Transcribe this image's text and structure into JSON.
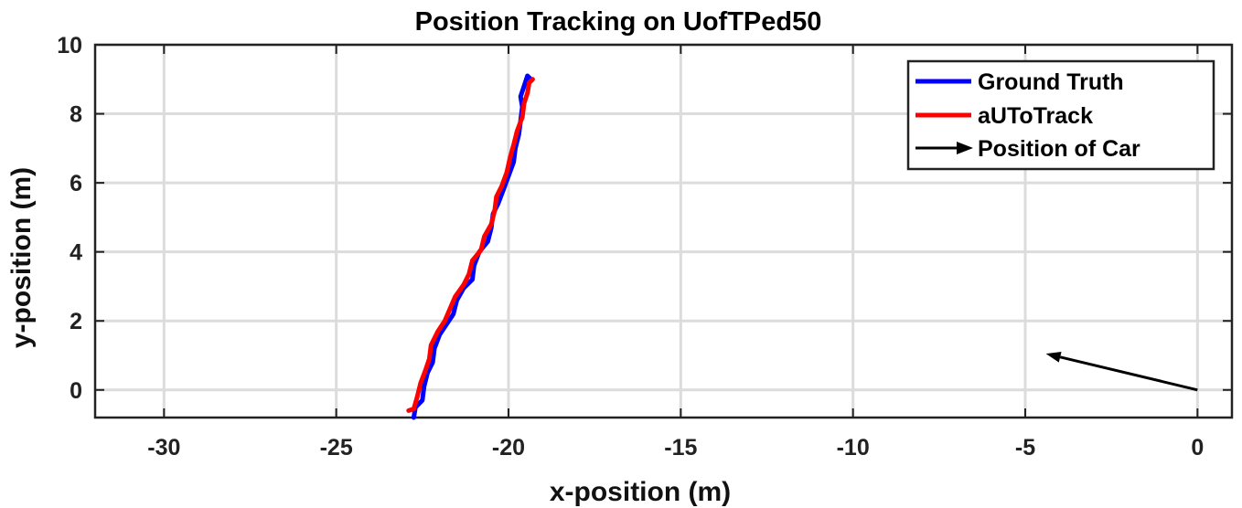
{
  "chart_data": {
    "type": "line",
    "title": "Position Tracking on UofTPed50",
    "xlabel": "x-position (m)",
    "ylabel": "y-position (m)",
    "xlim": [
      -32,
      1
    ],
    "ylim": [
      -0.8,
      10
    ],
    "xticks": [
      -30,
      -25,
      -20,
      -15,
      -10,
      -5,
      0
    ],
    "yticks": [
      0,
      2,
      4,
      6,
      8,
      10
    ],
    "xtick_labels": [
      "-30",
      "-25",
      "-20",
      "-15",
      "-10",
      "-5",
      "0"
    ],
    "ytick_labels": [
      "0",
      "2",
      "4",
      "6",
      "8",
      "10"
    ],
    "grid": true,
    "legend_position": "top-right",
    "legend": [
      "Ground Truth",
      "aUToTrack",
      "Position of Car"
    ],
    "series": [
      {
        "name": "Ground Truth",
        "color": "#0000ff",
        "points": [
          [
            -22.75,
            -0.8
          ],
          [
            -22.7,
            -0.5
          ],
          [
            -22.5,
            -0.3
          ],
          [
            -22.45,
            0.1
          ],
          [
            -22.35,
            0.5
          ],
          [
            -22.2,
            0.8
          ],
          [
            -22.15,
            1.2
          ],
          [
            -22.0,
            1.6
          ],
          [
            -21.8,
            1.9
          ],
          [
            -21.6,
            2.2
          ],
          [
            -21.5,
            2.6
          ],
          [
            -21.3,
            2.95
          ],
          [
            -21.05,
            3.2
          ],
          [
            -21.0,
            3.6
          ],
          [
            -20.85,
            4.0
          ],
          [
            -20.6,
            4.3
          ],
          [
            -20.5,
            4.7
          ],
          [
            -20.45,
            5.1
          ],
          [
            -20.3,
            5.4
          ],
          [
            -20.15,
            5.8
          ],
          [
            -20.0,
            6.2
          ],
          [
            -19.85,
            6.6
          ],
          [
            -19.8,
            7.0
          ],
          [
            -19.7,
            7.4
          ],
          [
            -19.65,
            7.8
          ],
          [
            -19.6,
            8.2
          ],
          [
            -19.65,
            8.5
          ],
          [
            -19.55,
            8.8
          ],
          [
            -19.45,
            9.1
          ],
          [
            -19.35,
            9.0
          ]
        ]
      },
      {
        "name": "aUToTrack",
        "color": "#ff0000",
        "points": [
          [
            -22.9,
            -0.6
          ],
          [
            -22.75,
            -0.55
          ],
          [
            -22.65,
            -0.2
          ],
          [
            -22.55,
            0.2
          ],
          [
            -22.4,
            0.6
          ],
          [
            -22.3,
            0.9
          ],
          [
            -22.25,
            1.3
          ],
          [
            -22.05,
            1.7
          ],
          [
            -21.85,
            2.0
          ],
          [
            -21.7,
            2.35
          ],
          [
            -21.55,
            2.7
          ],
          [
            -21.3,
            3.05
          ],
          [
            -21.15,
            3.35
          ],
          [
            -21.05,
            3.75
          ],
          [
            -20.8,
            4.05
          ],
          [
            -20.7,
            4.45
          ],
          [
            -20.5,
            4.8
          ],
          [
            -20.4,
            5.2
          ],
          [
            -20.35,
            5.6
          ],
          [
            -20.2,
            5.9
          ],
          [
            -20.05,
            6.3
          ],
          [
            -19.95,
            6.75
          ],
          [
            -19.85,
            7.1
          ],
          [
            -19.75,
            7.5
          ],
          [
            -19.6,
            7.9
          ],
          [
            -19.55,
            8.3
          ],
          [
            -19.45,
            8.6
          ],
          [
            -19.4,
            8.9
          ],
          [
            -19.3,
            9.0
          ]
        ]
      }
    ],
    "arrow": {
      "name": "Position of Car",
      "color": "#000000",
      "from": [
        0,
        0
      ],
      "to": [
        -4.4,
        1.05
      ]
    }
  }
}
